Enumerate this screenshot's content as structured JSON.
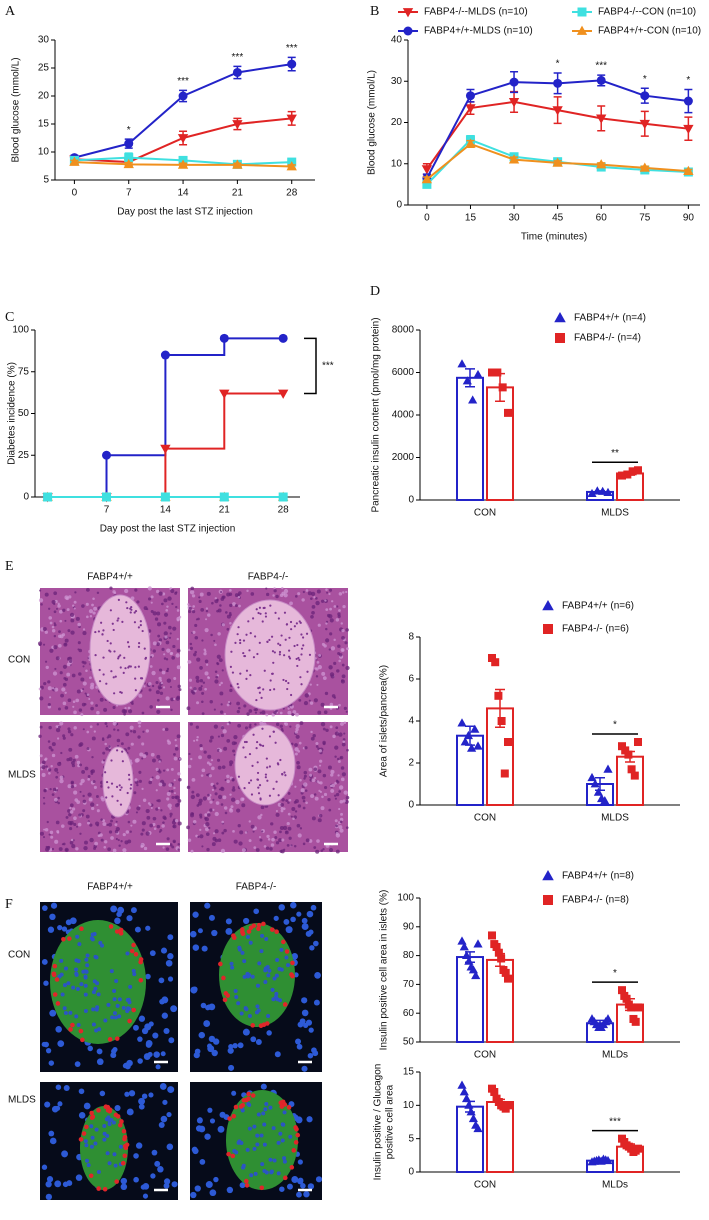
{
  "chart_data": [
    {
      "type": "line",
      "panel": "A",
      "x": [
        0,
        7,
        14,
        21,
        28
      ],
      "xlim": [
        -2.5,
        31
      ],
      "xticks": [
        0,
        7,
        14,
        21,
        28
      ],
      "ylim": [
        5,
        30
      ],
      "yticks": [
        5,
        10,
        15,
        20,
        25,
        30
      ],
      "xlabel": "Day  post the last STZ injection",
      "ylabel": "Blood glucose (mmol/L)",
      "series": [
        {
          "color": "#e02424",
          "marker": "triangle-down",
          "values": [
            8.7,
            8.2,
            12.5,
            15,
            16
          ],
          "errors": [
            0.4,
            0.5,
            1.2,
            1,
            1.2
          ]
        },
        {
          "color": "#2323c8",
          "marker": "circle",
          "values": [
            9,
            11.5,
            20,
            24.2,
            25.7
          ],
          "errors": [
            0.4,
            0.8,
            1,
            1.1,
            1.2
          ]
        },
        {
          "color": "#3fe0e0",
          "marker": "square",
          "values": [
            8.5,
            9,
            8.5,
            7.8,
            8.2
          ],
          "errors": [
            0.5,
            0.8,
            0.4,
            0.4,
            0.5
          ]
        },
        {
          "color": "#f0901e",
          "marker": "triangle-up",
          "values": [
            8.2,
            7.8,
            7.7,
            7.7,
            7.4
          ],
          "errors": [
            0.3,
            0.3,
            0.3,
            0.3,
            0.3
          ]
        }
      ],
      "annotations": [
        {
          "x": 7,
          "text": "*"
        },
        {
          "x": 14,
          "text": "***"
        },
        {
          "x": 21,
          "text": "***"
        },
        {
          "x": 28,
          "text": "***"
        }
      ]
    },
    {
      "type": "line",
      "panel": "B",
      "x": [
        0,
        15,
        30,
        45,
        60,
        75,
        90
      ],
      "xlim": [
        -6.5,
        94
      ],
      "xticks": [
        0,
        15,
        30,
        45,
        60,
        75,
        90
      ],
      "ylim": [
        0,
        40
      ],
      "yticks": [
        0,
        10,
        20,
        30,
        40
      ],
      "xlabel": "Time (minutes)",
      "ylabel": "Blood glucose (mmol/L)",
      "legend": "top",
      "series": [
        {
          "name": "FABP4-/--MLDS (n=10)",
          "color": "#e02424",
          "marker": "triangle-down",
          "values": [
            8.7,
            23.5,
            25,
            23,
            21,
            19.7,
            18.5
          ],
          "errors": [
            1.3,
            1.5,
            2.5,
            3.2,
            3,
            3,
            2.8
          ]
        },
        {
          "name": "FABP4+/+-MLDS (n=10)",
          "color": "#2323c8",
          "marker": "circle",
          "values": [
            6.5,
            26.5,
            29.8,
            29.5,
            30.2,
            26.5,
            25.2
          ],
          "errors": [
            1,
            1.5,
            2.5,
            2.5,
            1.3,
            1.8,
            2.8
          ]
        },
        {
          "name": "FABP4-/--CON (n=10)",
          "color": "#3fe0e0",
          "marker": "square",
          "values": [
            5,
            15.8,
            11.7,
            10.5,
            9.2,
            8.5,
            8
          ],
          "errors": [
            0.8,
            1,
            0.8,
            0.8,
            0.6,
            0.5,
            0.5
          ]
        },
        {
          "name": "FABP4+/+-CON (n=10)",
          "color": "#f0901e",
          "marker": "triangle-up",
          "values": [
            6.2,
            14.8,
            11,
            10.2,
            9.8,
            9,
            8.2
          ],
          "errors": [
            0.6,
            0.8,
            0.6,
            0.5,
            0.4,
            0.4,
            0.4
          ]
        }
      ],
      "annotations": [
        {
          "x": 45,
          "text": "*"
        },
        {
          "x": 60,
          "text": "***"
        },
        {
          "x": 75,
          "text": "*"
        },
        {
          "x": 90,
          "text": "*"
        }
      ]
    },
    {
      "type": "line",
      "panel": "C",
      "step": "post",
      "x": [
        0,
        7,
        14,
        21,
        28
      ],
      "xlim": [
        -1.5,
        30
      ],
      "xticks": [
        7,
        14,
        21,
        28
      ],
      "ylim": [
        0,
        100
      ],
      "yticks": [
        0,
        25,
        50,
        75,
        100
      ],
      "xlabel": "Day  post the last STZ injection",
      "ylabel": "Diabetes incidence (%)",
      "series": [
        {
          "color": "#2323c8",
          "marker": "circle",
          "values": [
            0,
            25,
            85,
            95,
            95
          ]
        },
        {
          "color": "#e02424",
          "marker": "triangle-down",
          "values": [
            0,
            0,
            29,
            62,
            62
          ]
        },
        {
          "color": "#f0901e",
          "marker": "triangle-up",
          "values": [
            0,
            0,
            0,
            0,
            0
          ]
        },
        {
          "color": "#3fe0e0",
          "marker": "square",
          "values": [
            0,
            0,
            0,
            0,
            0
          ]
        }
      ],
      "annotations": [
        {
          "text": "***",
          "style": "bracket"
        }
      ]
    },
    {
      "type": "bar",
      "panel": "D",
      "categories": [
        "CON",
        "MLDS"
      ],
      "ylim": [
        0,
        8000
      ],
      "yticks": [
        0,
        2000,
        4000,
        6000,
        8000
      ],
      "ylabel": "Pancreatic insulin content (pmol/mg protein)",
      "legend": "upper right",
      "series": [
        {
          "name": "FABP4+/+ (n=4)",
          "color": "#2323c8",
          "marker": "triangle-up",
          "values": [
            5750,
            380
          ],
          "errors": [
            420,
            50
          ],
          "points": [
            [
              6400,
              5600,
              4700,
              5900
            ],
            [
              300,
              420,
              400,
              350
            ]
          ]
        },
        {
          "name": "FABP4-/- (n=4)",
          "color": "#e02424",
          "marker": "square",
          "values": [
            5300,
            1250
          ],
          "errors": [
            650,
            80
          ],
          "points": [
            [
              6000,
              6000,
              5300,
              4100
            ],
            [
              1150,
              1200,
              1350,
              1400
            ]
          ]
        }
      ],
      "annotations": [
        {
          "text": "**"
        }
      ]
    },
    {
      "type": "bar",
      "categories": [
        "CON",
        "MLDS"
      ],
      "ylim": [
        0,
        8
      ],
      "yticks": [
        0,
        2,
        4,
        6,
        8
      ],
      "ylabel": "Area of islets/pancrea(%)",
      "legend": "upper right",
      "series": [
        {
          "name": "FABP4+/+ (n=6)",
          "color": "#2323c8",
          "marker": "triangle-up",
          "values": [
            3.3,
            1.0
          ],
          "errors": [
            0.45,
            0.3
          ],
          "points": [
            [
              3.9,
              3.0,
              3.3,
              2.7,
              3.6,
              2.8
            ],
            [
              1.3,
              1.0,
              0.6,
              0.3,
              0.2,
              1.7
            ]
          ]
        },
        {
          "name": "FABP4-/- (n=6)",
          "color": "#e02424",
          "marker": "square",
          "values": [
            4.6,
            2.3
          ],
          "errors": [
            0.9,
            0.25
          ],
          "points": [
            [
              7.0,
              6.8,
              5.2,
              4.0,
              1.5,
              3.0
            ],
            [
              2.8,
              2.6,
              2.4,
              1.7,
              1.4,
              3.0
            ]
          ]
        }
      ],
      "annotations": [
        {
          "text": "*"
        }
      ]
    },
    {
      "type": "bar",
      "categories": [
        "CON",
        "MLDs"
      ],
      "ylim": [
        50,
        100
      ],
      "yticks": [
        50,
        60,
        70,
        80,
        90,
        100
      ],
      "ylabel": "Insulin positive cell area in islets (%)",
      "legend": "upper right",
      "series": [
        {
          "name": "FABP4+/+ (n=8)",
          "color": "#2323c8",
          "marker": "triangle-up",
          "values": [
            79.5,
            56.5
          ],
          "errors": [
            1.8,
            1.0
          ],
          "points": [
            [
              85,
              83,
              80,
              78,
              76,
              75,
              73,
              84
            ],
            [
              58,
              57,
              56,
              55,
              55,
              56,
              57,
              58
            ]
          ]
        },
        {
          "name": "FABP4-/- (n=8)",
          "color": "#e02424",
          "marker": "square",
          "values": [
            78.5,
            63
          ],
          "errors": [
            2.2,
            2.0
          ],
          "points": [
            [
              87,
              84,
              83,
              81,
              79,
              75,
              74,
              72
            ],
            [
              68,
              66,
              65,
              63,
              62,
              58,
              57,
              62
            ]
          ]
        }
      ],
      "annotations": [
        {
          "text": "*"
        }
      ]
    },
    {
      "type": "bar",
      "categories": [
        "CON",
        "MLDs"
      ],
      "ylim": [
        0,
        15
      ],
      "yticks": [
        0,
        5,
        10,
        15
      ],
      "ylabel": [
        "Insulin positive / Glucagon",
        "positive cell area"
      ],
      "series": [
        {
          "color": "#2323c8",
          "marker": "triangle-up",
          "values": [
            9.8,
            1.7
          ],
          "errors": [
            0.8,
            0.1
          ],
          "points": [
            [
              13,
              12,
              11,
              10,
              9,
              8,
              7,
              6.5
            ],
            [
              1.5,
              1.6,
              1.7,
              1.8,
              1.6,
              1.9,
              1.8,
              1.7
            ]
          ]
        },
        {
          "color": "#e02424",
          "marker": "square",
          "values": [
            10.5,
            3.8
          ],
          "errors": [
            0.4,
            0.4
          ],
          "points": [
            [
              12.5,
              12,
              11,
              10.5,
              10,
              9.8,
              9.5,
              10
            ],
            [
              5,
              4.5,
              4,
              3.8,
              3.5,
              3,
              3.2,
              3.5
            ]
          ]
        }
      ],
      "annotations": [
        {
          "text": "***"
        }
      ]
    }
  ],
  "images": [
    {
      "panel": "E",
      "columns": [
        "FABP4+/+",
        "FABP4-/-"
      ],
      "rows": [
        "CON",
        "MLDS"
      ]
    },
    {
      "panel": "F",
      "columns": [
        "FABP4+/+",
        "FABP4-/-"
      ],
      "rows": [
        "CON",
        "MLDS"
      ]
    }
  ]
}
